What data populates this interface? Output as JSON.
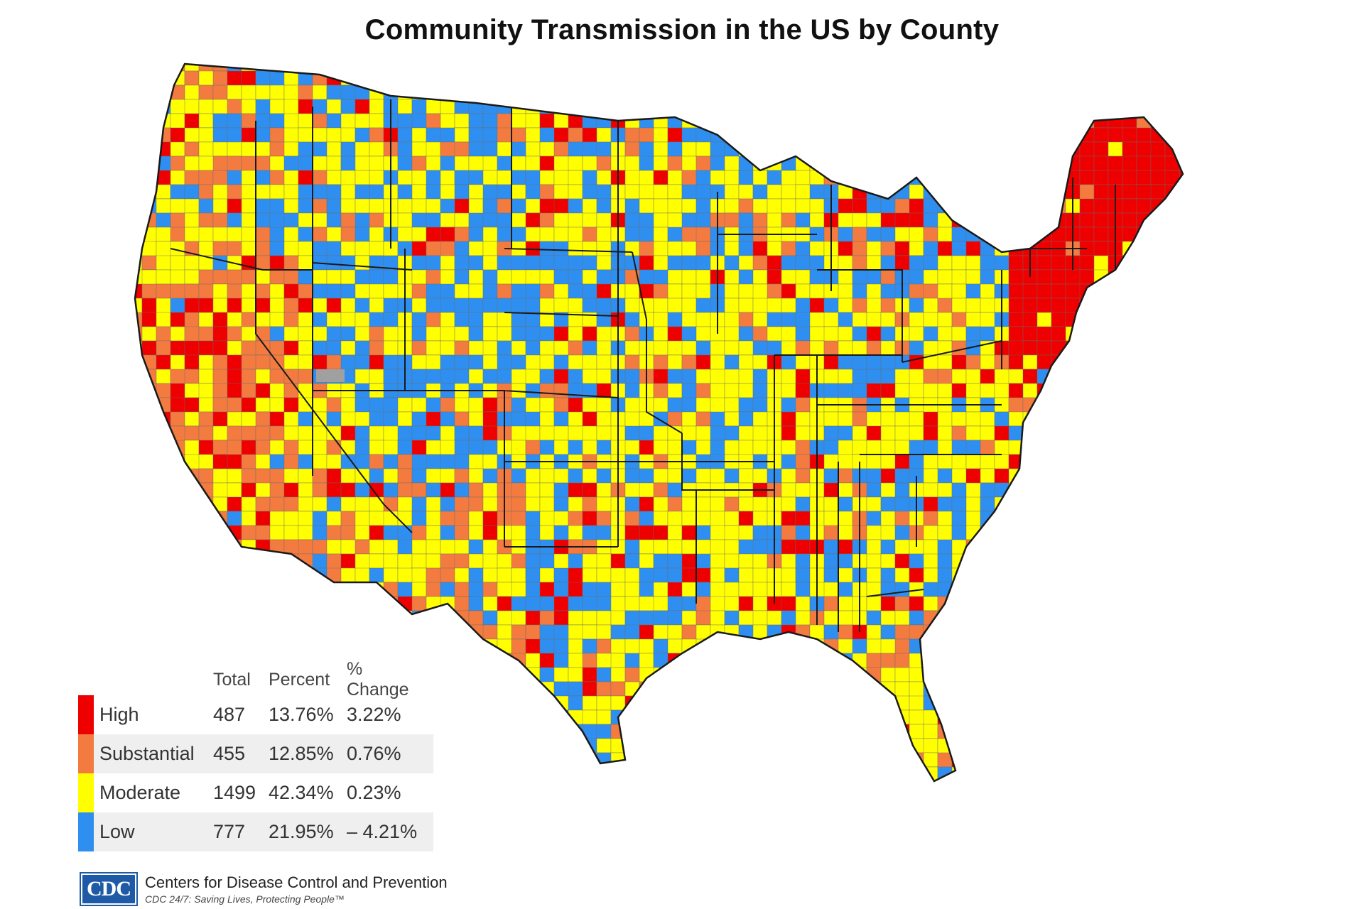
{
  "title": "Community Transmission in the US by County",
  "colors": {
    "high": "#ee0000",
    "substantial": "#f47b40",
    "moderate": "#ffff00",
    "low": "#2f8ff0",
    "no_data": "#a0a0a0",
    "border": "#1a1a1a"
  },
  "legend": {
    "headers": {
      "total": "Total",
      "percent": "Percent",
      "change": "% Change"
    },
    "rows": [
      {
        "label": "High",
        "total": "487",
        "percent": "13.76%",
        "change": "3.22%",
        "color": "#ee0000"
      },
      {
        "label": "Substantial",
        "total": "455",
        "percent": "12.85%",
        "change": "0.76%",
        "color": "#f47b40"
      },
      {
        "label": "Moderate",
        "total": "1499",
        "percent": "42.34%",
        "change": "0.23%",
        "color": "#ffff00"
      },
      {
        "label": "Low",
        "total": "777",
        "percent": "21.95%",
        "change": "– 4.21%",
        "color": "#2f8ff0"
      }
    ]
  },
  "footer": {
    "logo_text": "CDC",
    "org_name": "Centers for Disease Control and Prevention",
    "tagline": "CDC 24/7: Saving Lives, Protecting People™"
  }
}
